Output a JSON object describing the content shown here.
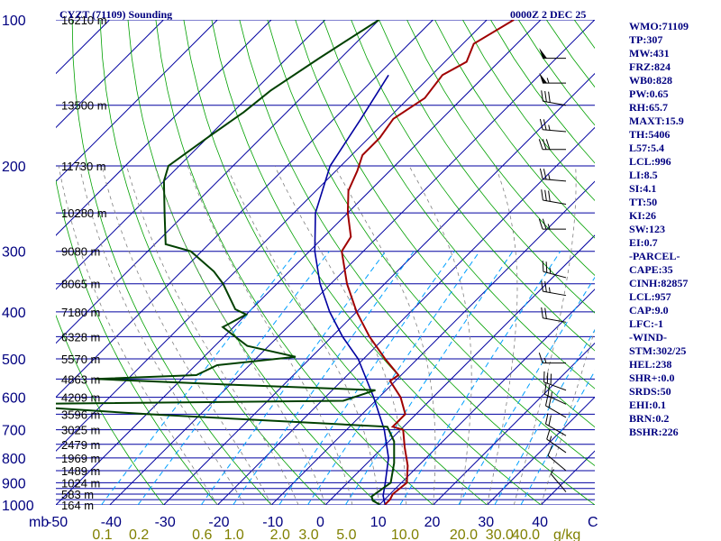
{
  "header": {
    "station": "CYZT (71109) Sounding",
    "valid_time": "0000Z  2 DEC 25"
  },
  "indices": [
    "WMO:71109",
    "TP:307",
    "MW:431",
    "FRZ:824",
    "WB0:828",
    "PW:0.65",
    "RH:65.7",
    "MAXT:15.9",
    "TH:5406",
    "L57:5.4",
    "LCL:996",
    "LI:8.5",
    "SI:4.1",
    "TT:50",
    "KI:26",
    "SW:123",
    "EI:0.7",
    "-PARCEL-",
    "CAPE:35",
    "CINH:82857",
    "LCL:957",
    "CAP:9.0",
    "LFC:-1",
    "-WIND-",
    "STM:302/25",
    "HEL:238",
    "SHR+:0.0",
    "SRDS:50",
    "EHI:0.1",
    "BRN:0.2",
    "BSHR:226"
  ],
  "colors": {
    "isobar": "#0000a0",
    "isotherm": "#0000a0",
    "dry_adiabat": "#00a000",
    "moist_adiabat": "#808080",
    "mixing_ratio": "#00a0ff",
    "temperature": "#a00000",
    "dewpoint": "#004000",
    "parcel": "#0000a0",
    "wind_barb": "#000000"
  },
  "chart_data": {
    "type": "skew-t",
    "pressure_axis": {
      "label_unit": "mb",
      "levels": [
        100,
        200,
        300,
        400,
        500,
        600,
        700,
        800,
        900,
        1000
      ],
      "isobars": [
        100,
        150,
        200,
        250,
        300,
        350,
        400,
        450,
        500,
        550,
        600,
        650,
        700,
        750,
        800,
        850,
        900,
        925,
        950,
        975,
        1000
      ],
      "range": [
        100,
        1000
      ],
      "log_scale": true
    },
    "temperature_axis": {
      "tick_labels": [
        "-50",
        "-40",
        "-30",
        "-20",
        "-10",
        "0",
        "10",
        "20",
        "30",
        "40"
      ],
      "unit_symbol": "C",
      "range_at_1000mb": [
        -50,
        50
      ]
    },
    "mixing_ratio_axis": {
      "tick_labels": [
        "0.1",
        "0.2",
        "0.6",
        "1.0",
        "2.0",
        "3.0",
        "5.0",
        "10.0",
        "20.0",
        "30.0",
        "40.0"
      ],
      "unit": "g/kg"
    },
    "height_labels": [
      {
        "p": 100,
        "label": "16210 m"
      },
      {
        "p": 150,
        "label": "13500 m"
      },
      {
        "p": 200,
        "label": "11730 m"
      },
      {
        "p": 250,
        "label": "10280 m"
      },
      {
        "p": 300,
        "label": "9080 m"
      },
      {
        "p": 350,
        "label": "8065 m"
      },
      {
        "p": 400,
        "label": "7180 m"
      },
      {
        "p": 450,
        "label": "6328 m"
      },
      {
        "p": 500,
        "label": "5570 m"
      },
      {
        "p": 550,
        "label": "4863 m"
      },
      {
        "p": 600,
        "label": "4209 m"
      },
      {
        "p": 650,
        "label": "3596 m"
      },
      {
        "p": 700,
        "label": "3025 m"
      },
      {
        "p": 750,
        "label": "2479 m"
      },
      {
        "p": 800,
        "label": "1969 m"
      },
      {
        "p": 850,
        "label": "1489 m"
      },
      {
        "p": 900,
        "label": "1024 m"
      },
      {
        "p": 950,
        "label": "583 m"
      },
      {
        "p": 1000,
        "label": "164 m"
      }
    ],
    "temperature_profile": [
      {
        "p": 100,
        "t": -55
      },
      {
        "p": 112,
        "t": -58
      },
      {
        "p": 122,
        "t": -56
      },
      {
        "p": 130,
        "t": -58
      },
      {
        "p": 145,
        "t": -57
      },
      {
        "p": 160,
        "t": -59
      },
      {
        "p": 175,
        "t": -58
      },
      {
        "p": 190,
        "t": -58
      },
      {
        "p": 205,
        "t": -56
      },
      {
        "p": 225,
        "t": -54
      },
      {
        "p": 250,
        "t": -50
      },
      {
        "p": 280,
        "t": -45
      },
      {
        "p": 300,
        "t": -44
      },
      {
        "p": 350,
        "t": -37
      },
      {
        "p": 400,
        "t": -30
      },
      {
        "p": 450,
        "t": -23
      },
      {
        "p": 500,
        "t": -16
      },
      {
        "p": 540,
        "t": -10.5
      },
      {
        "p": 555,
        "t": -11
      },
      {
        "p": 600,
        "t": -6
      },
      {
        "p": 650,
        "t": -2
      },
      {
        "p": 690,
        "t": -2
      },
      {
        "p": 700,
        "t": 0.5
      },
      {
        "p": 760,
        "t": 4
      },
      {
        "p": 830,
        "t": 8
      },
      {
        "p": 900,
        "t": 11
      },
      {
        "p": 950,
        "t": 10.5
      },
      {
        "p": 975,
        "t": 11
      },
      {
        "p": 998,
        "t": 11
      }
    ],
    "dewpoint_profile": [
      {
        "p": 100,
        "t": -80
      },
      {
        "p": 120,
        "t": -84
      },
      {
        "p": 140,
        "t": -87
      },
      {
        "p": 155,
        "t": -88
      },
      {
        "p": 175,
        "t": -90
      },
      {
        "p": 200,
        "t": -92
      },
      {
        "p": 215,
        "t": -90
      },
      {
        "p": 250,
        "t": -84
      },
      {
        "p": 290,
        "t": -78
      },
      {
        "p": 300,
        "t": -72
      },
      {
        "p": 330,
        "t": -64
      },
      {
        "p": 350,
        "t": -60
      },
      {
        "p": 395,
        "t": -53
      },
      {
        "p": 405,
        "t": -50
      },
      {
        "p": 430,
        "t": -52
      },
      {
        "p": 470,
        "t": -44
      },
      {
        "p": 495,
        "t": -33
      },
      {
        "p": 515,
        "t": -46
      },
      {
        "p": 540,
        "t": -48
      },
      {
        "p": 550,
        "t": -66
      },
      {
        "p": 565,
        "t": -40
      },
      {
        "p": 580,
        "t": -12
      },
      {
        "p": 610,
        "t": -16
      },
      {
        "p": 620,
        "t": -80
      },
      {
        "p": 650,
        "t": -50
      },
      {
        "p": 690,
        "t": -3
      },
      {
        "p": 740,
        "t": 1
      },
      {
        "p": 820,
        "t": 5
      },
      {
        "p": 900,
        "t": 8
      },
      {
        "p": 960,
        "t": 7
      },
      {
        "p": 980,
        "t": 8
      },
      {
        "p": 998,
        "t": 10
      }
    ],
    "parcel_profile": [
      {
        "p": 130,
        "t": -68
      },
      {
        "p": 160,
        "t": -65
      },
      {
        "p": 200,
        "t": -62
      },
      {
        "p": 250,
        "t": -56
      },
      {
        "p": 300,
        "t": -49
      },
      {
        "p": 350,
        "t": -42
      },
      {
        "p": 400,
        "t": -35
      },
      {
        "p": 450,
        "t": -28
      },
      {
        "p": 500,
        "t": -21
      },
      {
        "p": 600,
        "t": -11
      },
      {
        "p": 700,
        "t": -3
      },
      {
        "p": 800,
        "t": 3
      },
      {
        "p": 900,
        "t": 7
      },
      {
        "p": 957,
        "t": 9
      },
      {
        "p": 998,
        "t": 11
      }
    ],
    "wind_barbs": [
      {
        "p": 120,
        "dir": 270,
        "spd": 50
      },
      {
        "p": 135,
        "dir": 270,
        "spd": 55
      },
      {
        "p": 150,
        "dir": 280,
        "spd": 30
      },
      {
        "p": 170,
        "dir": 275,
        "spd": 25
      },
      {
        "p": 185,
        "dir": 270,
        "spd": 30
      },
      {
        "p": 215,
        "dir": 275,
        "spd": 25
      },
      {
        "p": 240,
        "dir": 280,
        "spd": 30
      },
      {
        "p": 270,
        "dir": 270,
        "spd": 25
      },
      {
        "p": 340,
        "dir": 285,
        "spd": 25
      },
      {
        "p": 370,
        "dir": 280,
        "spd": 25
      },
      {
        "p": 420,
        "dir": 280,
        "spd": 20
      },
      {
        "p": 510,
        "dir": 270,
        "spd": 15
      },
      {
        "p": 580,
        "dir": 290,
        "spd": 30
      },
      {
        "p": 620,
        "dir": 295,
        "spd": 25
      },
      {
        "p": 660,
        "dir": 300,
        "spd": 20
      },
      {
        "p": 720,
        "dir": 300,
        "spd": 20
      },
      {
        "p": 780,
        "dir": 305,
        "spd": 15
      },
      {
        "p": 850,
        "dir": 310,
        "spd": 10
      },
      {
        "p": 940,
        "dir": 320,
        "spd": 5
      }
    ],
    "title": "CYZT (71109) Sounding"
  }
}
